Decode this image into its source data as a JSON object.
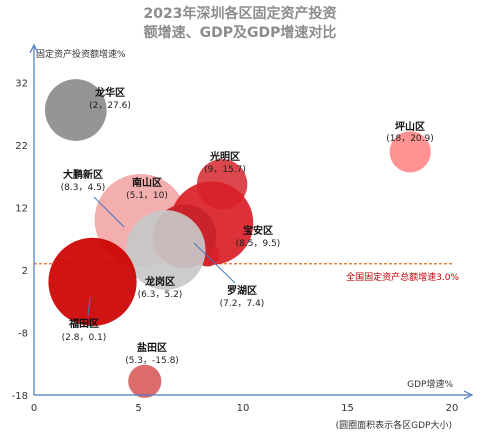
{
  "chart_data": {
    "type": "scatter",
    "title": [
      "2023年深圳各区固定资产投资",
      "额增速、GDP及GDP增速对比"
    ],
    "ylabel": "固定资产投资额增速%",
    "xlabel": "GDP增速%",
    "footnote": "(圆圈面积表示各区GDP大小)",
    "xlim": [
      0,
      20
    ],
    "ylim": [
      -18,
      34
    ],
    "xticks": [
      "0",
      "5",
      "10",
      "15",
      "20"
    ],
    "yticks": [
      "32",
      "22",
      "12",
      "2",
      "-8",
      "-18"
    ],
    "reference_line": {
      "y": 3.0,
      "label": "全国固定资产总额增速3.0%",
      "color": "#e26b1d"
    },
    "points": [
      {
        "name": "龙华区",
        "value_label": "(2，27.6)",
        "x": 2.0,
        "y": 27.6,
        "gdp_size": 0.45,
        "color": "#8c8c8c"
      },
      {
        "name": "坪山区",
        "value_label": "(18，20.9)",
        "x": 18.0,
        "y": 20.9,
        "gdp_size": 0.2,
        "color": "#ff8a8a"
      },
      {
        "name": "光明区",
        "value_label": "(9，15.7)",
        "x": 9.0,
        "y": 15.7,
        "gdp_size": 0.3,
        "color": "#d9363e"
      },
      {
        "name": "大鹏新区",
        "value_label": "(8.3，4.5)",
        "x": 8.3,
        "y": 4.5,
        "gdp_size": 0.07,
        "color": "#c0262d"
      },
      {
        "name": "南山区",
        "value_label": "(5.1，10)",
        "x": 5.1,
        "y": 10.0,
        "gdp_size": 1.0,
        "color": "#f2a7a7"
      },
      {
        "name": "宝安区",
        "value_label": "(8.5，9.5)",
        "x": 8.5,
        "y": 9.5,
        "gdp_size": 0.82,
        "color": "#d92027"
      },
      {
        "name": "罗湖区",
        "value_label": "(7.2，7.4)",
        "x": 7.2,
        "y": 7.4,
        "gdp_size": 0.48,
        "color": "#c9222a"
      },
      {
        "name": "龙岗区",
        "value_label": "(6.3，5.2)",
        "x": 6.3,
        "y": 5.2,
        "gdp_size": 0.75,
        "color": "#c8c8c8"
      },
      {
        "name": "福田区",
        "value_label": "(2.8，0.1)",
        "x": 2.8,
        "y": 0.1,
        "gdp_size": 0.92,
        "color": "#cc0000"
      },
      {
        "name": "盐田区",
        "value_label": "(5.3，-15.8)",
        "x": 5.3,
        "y": -15.8,
        "gdp_size": 0.13,
        "color": "#d96060"
      }
    ]
  }
}
